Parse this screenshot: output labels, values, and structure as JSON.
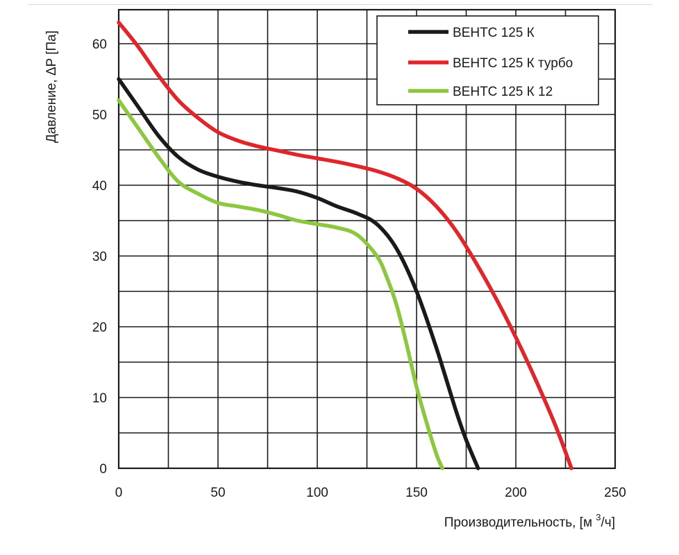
{
  "chart_data": {
    "type": "line",
    "title": "",
    "xlabel": "Производительность, [м 3/ч]",
    "xlabel_main": "Производительность, [м ",
    "xlabel_sup": "3",
    "xlabel_end": "/ч]",
    "ylabel": "Давление, ΔP [Па]",
    "xlim": [
      0,
      250
    ],
    "ylim": [
      0,
      65
    ],
    "x_ticks": [
      0,
      50,
      100,
      150,
      200,
      250
    ],
    "y_ticks": [
      0,
      10,
      20,
      30,
      40,
      50,
      60
    ],
    "x_tick_labels": [
      "0",
      "50",
      "100",
      "150",
      "200",
      "250"
    ],
    "y_tick_labels": [
      "0",
      "10",
      "20",
      "30",
      "40",
      "50",
      "60"
    ],
    "grid": true,
    "grid_x_step": 25,
    "grid_y_step": 5,
    "legend_position": "top-right",
    "series": [
      {
        "name": "ВЕНТС 125 К",
        "color": "#1a1a1a",
        "x": [
          0,
          10,
          20,
          30,
          40,
          50,
          60,
          70,
          80,
          90,
          100,
          110,
          120,
          130,
          140,
          150,
          160,
          170,
          175,
          181
        ],
        "y": [
          55,
          51,
          47,
          44,
          42.2,
          41.2,
          40.5,
          40,
          39.6,
          39.1,
          38.2,
          37,
          36,
          34.5,
          31,
          25,
          17,
          8,
          4,
          0
        ]
      },
      {
        "name": "ВЕНТС 125 К турбо",
        "color": "#e0262b",
        "x": [
          0,
          10,
          20,
          30,
          40,
          50,
          60,
          70,
          80,
          90,
          100,
          110,
          120,
          130,
          140,
          150,
          160,
          170,
          180,
          190,
          200,
          210,
          220,
          228
        ],
        "y": [
          63,
          59.5,
          55.5,
          52,
          49.5,
          47.5,
          46.3,
          45.5,
          44.9,
          44.3,
          43.8,
          43.3,
          42.7,
          42,
          41,
          39.5,
          37,
          33.5,
          29,
          24,
          18.5,
          12.5,
          6,
          0
        ]
      },
      {
        "name": "ВЕНТС 125 К 12",
        "color": "#8dc63f",
        "x": [
          0,
          10,
          20,
          30,
          40,
          50,
          60,
          70,
          80,
          90,
          100,
          110,
          120,
          130,
          135,
          140,
          145,
          150,
          155,
          160,
          163
        ],
        "y": [
          52,
          48,
          44,
          40.5,
          38.8,
          37.5,
          37,
          36.5,
          35.8,
          35,
          34.5,
          34,
          33,
          30,
          27,
          23,
          17.5,
          11.5,
          6.5,
          2,
          0
        ]
      }
    ]
  }
}
